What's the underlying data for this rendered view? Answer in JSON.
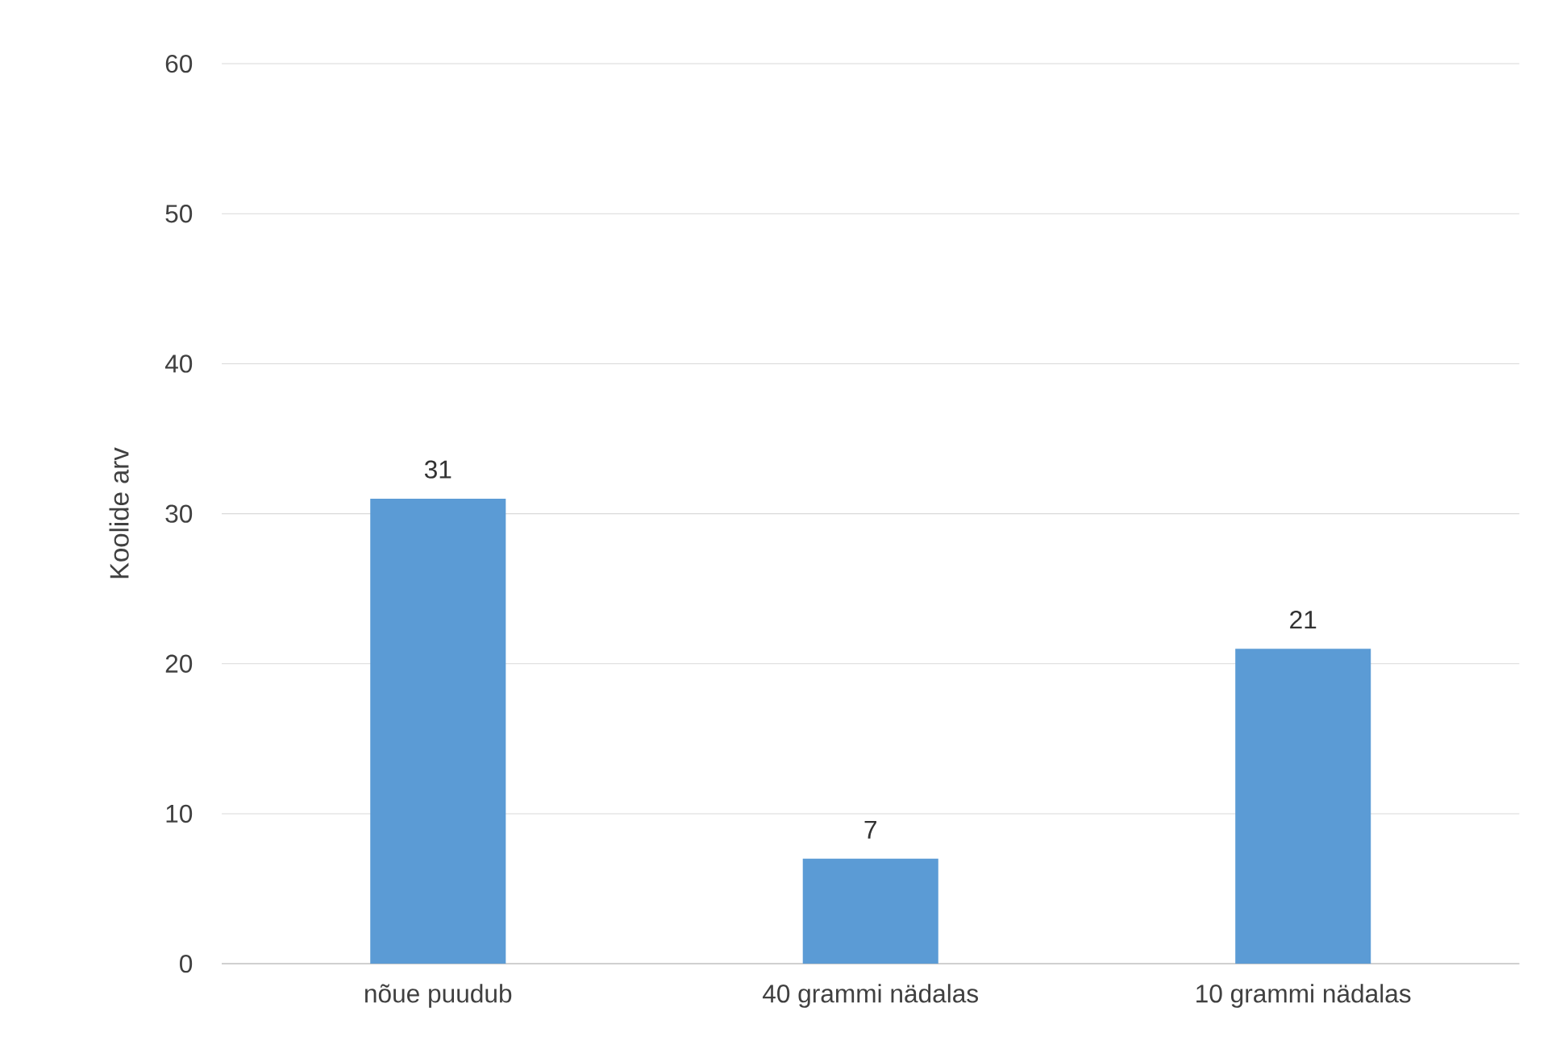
{
  "chart_data": {
    "type": "bar",
    "ylabel": "Koolide arv",
    "categories": [
      "nõue puudub",
      "40 grammi nädalas",
      "10 grammi nädalas"
    ],
    "values": [
      31,
      7,
      21
    ],
    "color": "#5b9bd5",
    "ylim": [
      0,
      60
    ],
    "yticks": [
      0,
      10,
      20,
      30,
      40,
      50,
      60
    ],
    "grid": "y",
    "data_labels": true
  }
}
